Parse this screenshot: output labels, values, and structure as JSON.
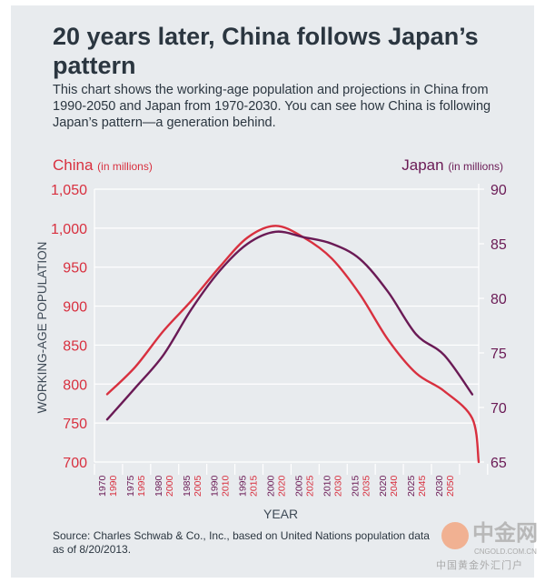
{
  "title": "20 years later, China follows Japan’s pattern",
  "description": "This chart shows the working-age population and projections in China from 1990-2050 and Japan from 1970-2030. You can see how China is following Japan’s pattern—a generation behind.",
  "source": "Source: Charles Schwab & Co., Inc., based on United Nations population data as of 8/20/2013.",
  "watermark": {
    "main": "中金网",
    "url": "CNGOLD.COM.CN",
    "sub": "中国黄金外汇门户"
  },
  "colors": {
    "china": "#d8303f",
    "japan": "#6a1a55",
    "background": "#e8ebee",
    "grid": "#ffffff"
  },
  "chart_data": {
    "type": "line",
    "xlabel": "YEAR",
    "ylabel": "WORKING-AGE POPULATION",
    "grid": true,
    "legend": {
      "china": {
        "name": "China",
        "unit": "(in millions)",
        "placement": "top-left"
      },
      "japan": {
        "name": "Japan",
        "unit": "(in millions)",
        "placement": "top-right"
      }
    },
    "x_ticks_japan": [
      "1970",
      "1975",
      "1980",
      "1985",
      "1990",
      "1995",
      "2000",
      "2005",
      "2010",
      "2015",
      "2020",
      "2025",
      "2030"
    ],
    "x_ticks_china": [
      "1990",
      "1995",
      "2000",
      "2005",
      "2010",
      "2015",
      "2020",
      "2025",
      "2030",
      "2035",
      "2040",
      "2045",
      "2050"
    ],
    "y_left": {
      "label_ticks": [
        "1,050",
        "1,000",
        "950",
        "900",
        "850",
        "800",
        "750",
        "700"
      ],
      "range": [
        700,
        1050
      ]
    },
    "y_right": {
      "label_ticks": [
        "90",
        "85",
        "80",
        "75",
        "70",
        "65"
      ],
      "range": [
        65,
        90
      ]
    },
    "series": [
      {
        "name": "China",
        "axis": "left",
        "x": [
          1990,
          1995,
          2000,
          2005,
          2010,
          2015,
          2020,
          2025,
          2030,
          2035,
          2040,
          2045,
          2050,
          2055,
          2060
        ],
        "values": [
          787,
          822,
          868,
          907,
          950,
          988,
          1003,
          988,
          961,
          915,
          857,
          814,
          791,
          756,
          700
        ]
      },
      {
        "name": "Japan",
        "axis": "right",
        "x": [
          1970,
          1975,
          1980,
          1985,
          1990,
          1995,
          2000,
          2005,
          2010,
          2015,
          2020,
          2025,
          2030,
          2035
        ],
        "values": [
          68.9,
          71.8,
          74.8,
          79.0,
          82.5,
          85.0,
          86.1,
          85.6,
          85.0,
          83.6,
          80.6,
          76.7,
          74.8,
          71.2
        ]
      }
    ]
  }
}
